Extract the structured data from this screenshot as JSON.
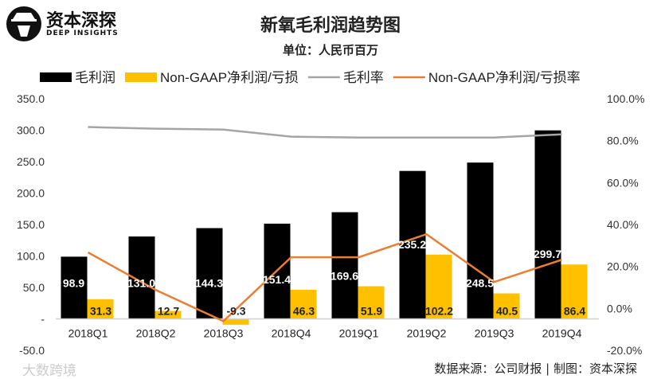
{
  "brand": {
    "name": "资本深探",
    "tagline": "DEEP INSIGHTS"
  },
  "watermark": "大数跨境",
  "footer": "数据来源：公司财报 | 制图：资本深探",
  "chart_data": {
    "type": "bar",
    "title": "新氧毛利润趋势图",
    "subtitle": "单位：人民币百万",
    "categories": [
      "2018Q1",
      "2018Q2",
      "2018Q3",
      "2018Q4",
      "2019Q1",
      "2019Q2",
      "2019Q3",
      "2019Q4"
    ],
    "left_axis": {
      "range": [
        -50,
        350
      ],
      "ticks": [
        "-50.0",
        "-",
        "50.0",
        "100.0",
        "150.0",
        "200.0",
        "250.0",
        "300.0",
        "350.0"
      ],
      "tick_values": [
        -50,
        0,
        50,
        100,
        150,
        200,
        250,
        300,
        350
      ]
    },
    "right_axis": {
      "range": [
        -20,
        100
      ],
      "ticks": [
        "-20.0%",
        "0.0%",
        "20.0%",
        "40.0%",
        "60.0%",
        "80.0%",
        "100.0%"
      ],
      "tick_values": [
        -20,
        0,
        20,
        40,
        60,
        80,
        100
      ]
    },
    "legend_position": "top",
    "grid": false,
    "series": [
      {
        "name": "毛利润",
        "type": "bar",
        "axis": "left",
        "color": "#000000",
        "values": [
          98.9,
          131.0,
          144.3,
          151.4,
          169.6,
          235.2,
          248.5,
          299.7
        ],
        "labels": [
          "98.9",
          "131.0",
          "144.3",
          "151.4",
          "169.6",
          "235.2",
          "248.5",
          "299.7"
        ]
      },
      {
        "name": "Non-GAAP净利润/亏损",
        "type": "bar",
        "axis": "left",
        "color": "#FFC000",
        "values": [
          31.3,
          12.7,
          -9.3,
          46.3,
          51.9,
          102.2,
          40.5,
          86.4
        ],
        "labels": [
          "31.3",
          "12.7",
          "-9.3",
          "46.3",
          "51.9",
          "102.2",
          "40.5",
          "86.4"
        ]
      },
      {
        "name": "毛利率",
        "type": "line",
        "axis": "right",
        "color": "#A5A5A5",
        "values": [
          86.5,
          85.7,
          85.3,
          81.9,
          81.5,
          81.5,
          81.5,
          83.0
        ]
      },
      {
        "name": "Non-GAAP净利润/亏损率",
        "type": "line",
        "axis": "right",
        "color": "#ED7D31",
        "values": [
          26.7,
          8.8,
          -6.1,
          24.4,
          24.4,
          35.4,
          12.6,
          23.2
        ]
      }
    ]
  }
}
